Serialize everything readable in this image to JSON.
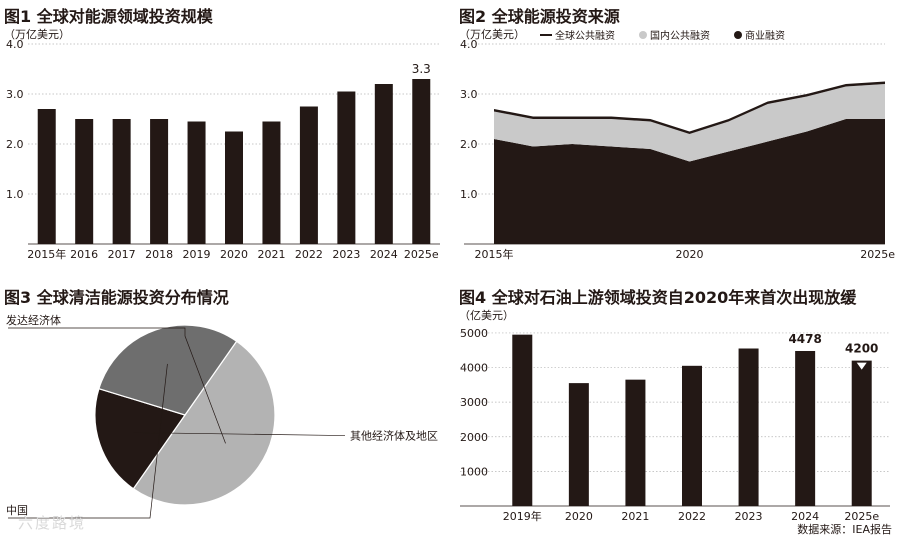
{
  "source": "数据来源：IEA报告",
  "watermark": "六度路境",
  "chart_data": [
    {
      "type": "bar",
      "title": "图1 全球对能源领域投资规模",
      "unit": "（万亿美元）",
      "categories": [
        "2015年",
        "2016",
        "2017",
        "2018",
        "2019",
        "2020",
        "2021",
        "2022",
        "2023",
        "2024",
        "2025e"
      ],
      "values": [
        2.7,
        2.5,
        2.5,
        2.5,
        2.45,
        2.25,
        2.45,
        2.75,
        3.05,
        3.2,
        3.3
      ],
      "ylim": [
        0,
        4.0
      ],
      "yticks": [
        "1.0",
        "2.0",
        "3.0",
        "4.0"
      ],
      "annotations": [
        {
          "index": 10,
          "text": "3.3"
        }
      ],
      "colors": {
        "bar": "#231815"
      }
    },
    {
      "type": "area",
      "title": "图2 全球能源投资来源",
      "unit": "（万亿美元）",
      "legend": [
        "全球公共融资",
        "国内公共融资",
        "商业融资"
      ],
      "x": [
        2015,
        2016,
        2017,
        2018,
        2019,
        2020,
        2021,
        2022,
        2023,
        2024,
        2025
      ],
      "xticklabels": [
        "2015年",
        "2020",
        "2025e"
      ],
      "series": [
        {
          "name": "商业融资",
          "values": [
            2.1,
            1.95,
            2.0,
            1.95,
            1.9,
            1.65,
            1.85,
            2.05,
            2.25,
            2.5,
            2.5
          ],
          "color": "#231815"
        },
        {
          "name": "国内公共融资",
          "values": [
            0.55,
            0.55,
            0.5,
            0.55,
            0.55,
            0.55,
            0.6,
            0.75,
            0.7,
            0.65,
            0.7
          ],
          "color": "#c9c9c9"
        },
        {
          "name": "全球公共融资",
          "values": [
            0.05,
            0.05,
            0.05,
            0.05,
            0.05,
            0.05,
            0.05,
            0.05,
            0.05,
            0.05,
            0.05
          ],
          "color": "#231815"
        }
      ],
      "ylim": [
        0,
        4.0
      ],
      "yticks": [
        "1.0",
        "2.0",
        "3.0",
        "4.0"
      ]
    },
    {
      "type": "pie",
      "title": "图3 全球清洁能源投资分布情况",
      "labels": [
        "发达经济体",
        "其他经济体及地区",
        "中国"
      ],
      "values": [
        50,
        20,
        30
      ],
      "colors": [
        "#b3b3b3",
        "#231815",
        "#6e6e6e"
      ]
    },
    {
      "type": "bar",
      "title": "图4 全球对石油上游领域投资自2020年来首次出现放缓",
      "unit": "（亿美元）",
      "categories": [
        "2019年",
        "2020",
        "2021",
        "2022",
        "2023",
        "2024",
        "2025e"
      ],
      "values": [
        4950,
        3550,
        3650,
        4050,
        4550,
        4478,
        4200
      ],
      "ylim": [
        0,
        5200
      ],
      "yticks": [
        "1000",
        "2000",
        "3000",
        "4000",
        "5000"
      ],
      "annotations": [
        {
          "index": 5,
          "text": "4478"
        },
        {
          "index": 6,
          "text": "4200"
        }
      ],
      "colors": {
        "bar": "#231815"
      }
    }
  ]
}
